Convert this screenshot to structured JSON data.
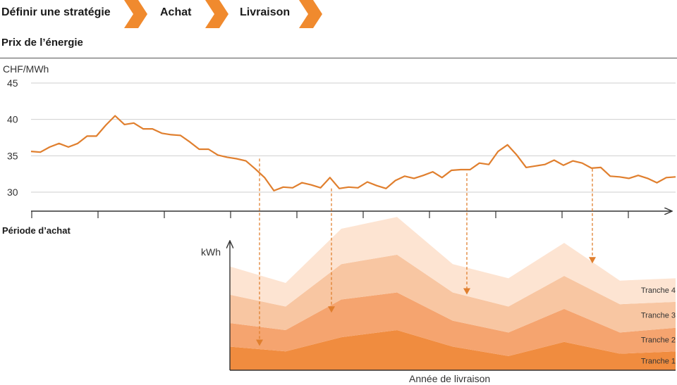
{
  "header": {
    "steps": [
      {
        "label": "Définir une stratégie"
      },
      {
        "label": "Achat"
      },
      {
        "label": "Livraison"
      }
    ],
    "accent": "#f08a2e"
  },
  "chart_data": [
    {
      "type": "line",
      "title": "Prix de l’énergie",
      "ylabel": "CHF/MWh",
      "xlabel": "Période d’achat",
      "ylim": [
        27,
        45
      ],
      "yticks": [
        45,
        40,
        35,
        30
      ],
      "grid": true,
      "series": [
        {
          "color": "#e07f2e",
          "values": [
            35.6,
            35.5,
            36.2,
            36.7,
            36.2,
            36.7,
            37.7,
            37.7,
            39.2,
            40.5,
            39.3,
            39.5,
            38.7,
            38.7,
            38.1,
            37.9,
            37.8,
            36.9,
            35.9,
            35.9,
            35.1,
            34.8,
            34.6,
            34.3,
            33.2,
            32.0,
            30.2,
            30.7,
            30.6,
            31.3,
            31.0,
            30.6,
            32.0,
            30.5,
            30.7,
            30.6,
            31.4,
            30.9,
            30.5,
            31.6,
            32.2,
            31.9,
            32.3,
            32.8,
            32.0,
            33.0,
            33.1,
            33.1,
            34.0,
            33.8,
            35.6,
            36.5,
            35.1,
            33.4,
            33.6,
            33.8,
            34.4,
            33.7,
            34.3,
            34.0,
            33.3,
            33.4,
            32.2,
            32.1,
            31.9,
            32.3,
            31.9,
            31.3,
            32.0,
            32.1
          ]
        }
      ]
    },
    {
      "type": "area",
      "ylabel": "kWh",
      "xlabel": "Année de livraison",
      "categories": [
        "",
        "",
        "",
        "",
        "",
        "",
        "",
        "",
        ""
      ],
      "series": [
        {
          "name": "Tranche 1",
          "color": "#f08c3f",
          "values": [
            10,
            8,
            14,
            17,
            10,
            6,
            12,
            7,
            8
          ]
        },
        {
          "name": "Tranche 2",
          "color": "#f5a46f",
          "values": [
            10,
            9,
            16,
            16,
            11,
            10,
            14,
            9,
            10
          ]
        },
        {
          "name": "Tranche 3",
          "color": "#f8c6a2",
          "values": [
            12,
            10,
            15,
            16,
            12,
            11,
            14,
            12,
            11
          ]
        },
        {
          "name": "Tranche 4",
          "color": "#fde4d2",
          "values": [
            12,
            10,
            15,
            16,
            12,
            12,
            14,
            10,
            10
          ]
        }
      ]
    }
  ]
}
